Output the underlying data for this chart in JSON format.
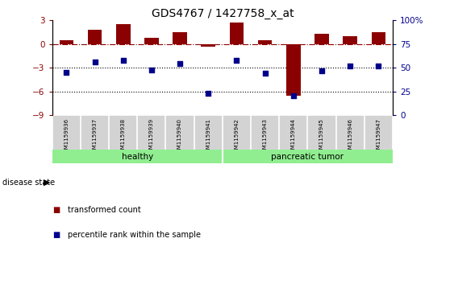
{
  "title": "GDS4767 / 1427758_x_at",
  "samples": [
    "GSM1159936",
    "GSM1159937",
    "GSM1159938",
    "GSM1159939",
    "GSM1159940",
    "GSM1159941",
    "GSM1159942",
    "GSM1159943",
    "GSM1159944",
    "GSM1159945",
    "GSM1159946",
    "GSM1159947"
  ],
  "red_bars": [
    0.5,
    1.8,
    2.5,
    0.8,
    1.5,
    -0.3,
    2.7,
    0.5,
    -6.5,
    1.3,
    1.0,
    1.5
  ],
  "blue_dots": [
    -3.6,
    -2.3,
    -2.0,
    -3.3,
    -2.5,
    -6.2,
    -2.0,
    -3.7,
    -6.5,
    -3.4,
    -2.8,
    -2.8
  ],
  "groups": [
    {
      "label": "healthy",
      "start": 0,
      "end": 5
    },
    {
      "label": "pancreatic tumor",
      "start": 6,
      "end": 11
    }
  ],
  "group_color": "#90EE90",
  "bar_color": "#8B0000",
  "dot_color": "#00008B",
  "ylim": [
    -9,
    3
  ],
  "yticks_left": [
    -9,
    -6,
    -3,
    0,
    3
  ],
  "yticks_right": [
    0,
    25,
    50,
    75,
    100
  ],
  "hline_y": 0,
  "dotted_lines": [
    -3,
    -6
  ],
  "background_color": "#ffffff",
  "plot_bg": "#ffffff",
  "title_fontsize": 10,
  "tick_label_color_left": "#8B0000",
  "tick_label_color_right": "#00008B",
  "label_bg": "#D3D3D3",
  "legend_items": [
    {
      "label": "transformed count",
      "color": "#8B0000"
    },
    {
      "label": "percentile rank within the sample",
      "color": "#00008B"
    }
  ]
}
